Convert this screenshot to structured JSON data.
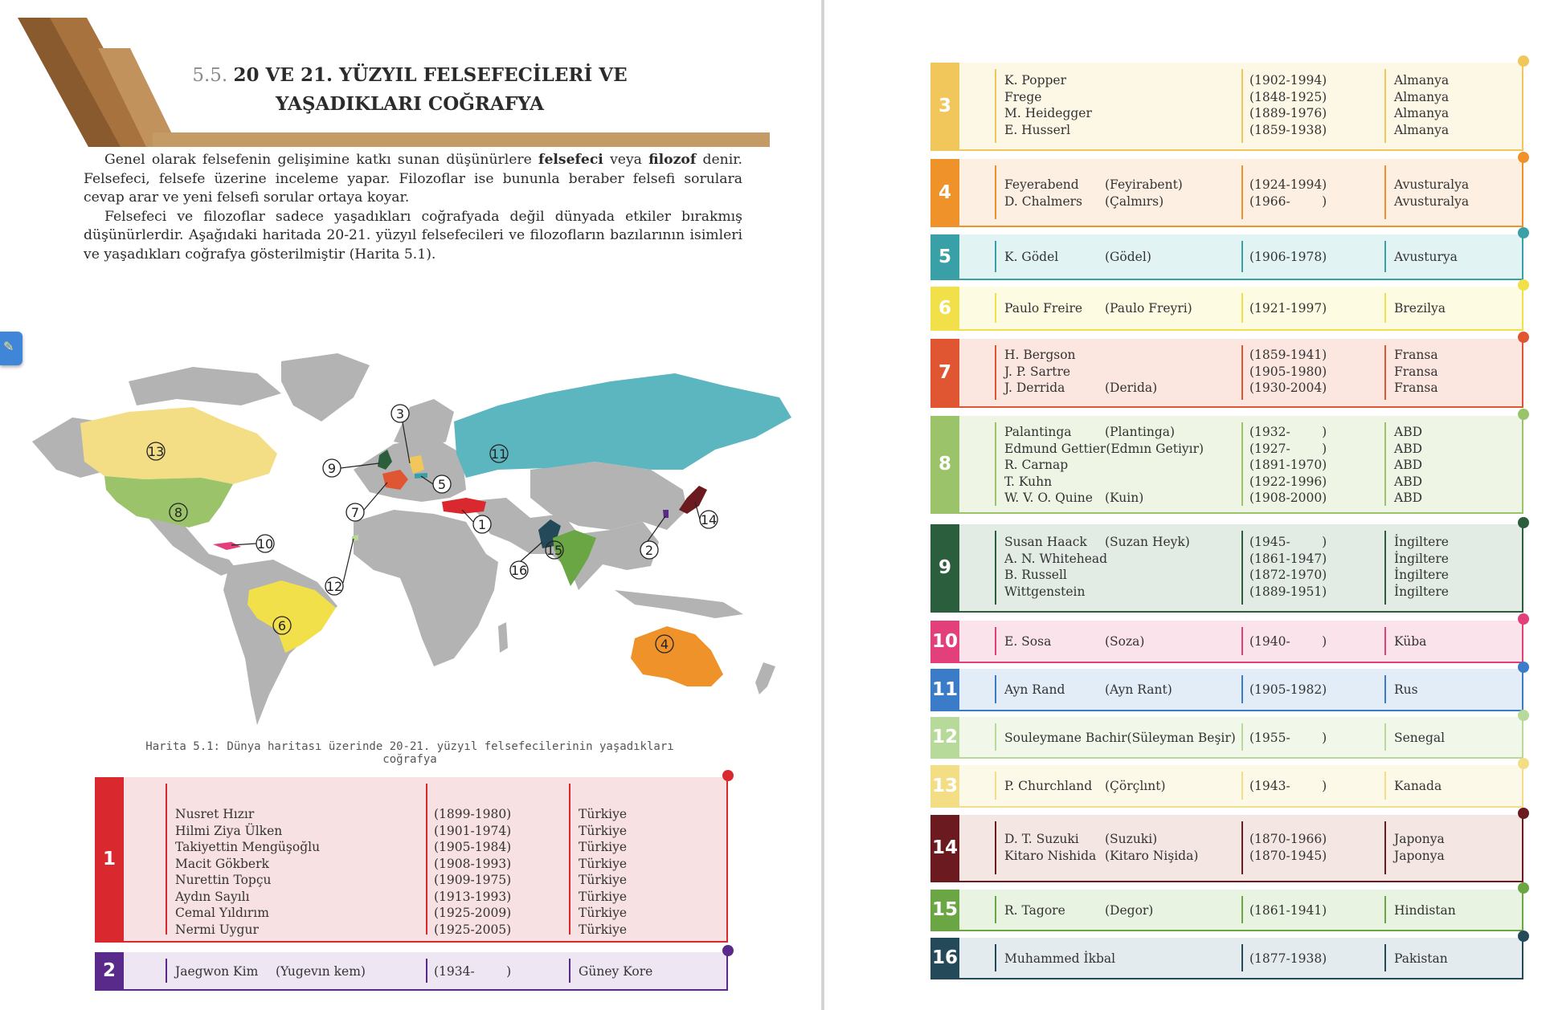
{
  "heading": {
    "number": "5.5.",
    "line1": "20 VE 21. YÜZYIL FELSEFECİLERİ VE",
    "line2": "YAŞADIKLARI COĞRAFYA"
  },
  "intro": {
    "p1_pre": "Genel olarak felsefenin gelişimine katkı sunan düşünürlere ",
    "p1_term1": "felsefeci",
    "p1_mid": " veya ",
    "p1_term2": "filozof",
    "p1_post": " denir. Felsefeci, felsefe üzerine inceleme yapar. Filozoflar ise bununla beraber felsefi sorulara cevap arar ve yeni felsefi sorular ortaya koyar.",
    "p2": "Felsefeci ve filozoflar sadece yaşadıkları coğrafyada değil dünyada etkiler bırakmış düşünürlerdir. Aşağıdaki haritada 20-21. yüzyıl felsefecileri ve filozofların bazılarının isimleri ve yaşadıkları coğrafya gösterilmiştir (Harita 5.1)."
  },
  "side_tab": {
    "icon": "bookmark-icon",
    "glyph": "✎"
  },
  "map": {
    "caption": "Harita 5.1: Dünya haritası üzerinde 20-21. yüzyıl felsefecilerinin yaşadıkları coğrafya",
    "markers": [
      "1",
      "2",
      "3",
      "4",
      "5",
      "6",
      "7",
      "8",
      "9",
      "10",
      "11",
      "12",
      "13",
      "14",
      "15",
      "16"
    ]
  },
  "cards": [
    {
      "n": "1",
      "color": "#d9282e",
      "bg": "#f8e1e3",
      "names": [
        [
          "Nusret Hızır",
          ""
        ],
        [
          "Hilmi Ziya Ülken",
          ""
        ],
        [
          "Takiyettin Mengüşoğlu",
          ""
        ],
        [
          "Macit Gökberk",
          ""
        ],
        [
          "Nurettin Topçu",
          ""
        ],
        [
          "Aydın Sayılı",
          ""
        ],
        [
          "Cemal Yıldırım",
          ""
        ],
        [
          "Nermi Uygur",
          ""
        ]
      ],
      "years": [
        "(1899-1980)",
        "(1901-1974)",
        "(1905-1984)",
        "(1908-1993)",
        "(1909-1975)",
        "(1913-1993)",
        "(1925-2009)",
        "(1925-2005)"
      ],
      "countries": [
        "Türkiye",
        "Türkiye",
        "Türkiye",
        "Türkiye",
        "Türkiye",
        "Türkiye",
        "Türkiye",
        "Türkiye"
      ]
    },
    {
      "n": "2",
      "color": "#5a2a8a",
      "bg": "#efe6f4",
      "names": [
        [
          "Jaegwon Kim",
          "(Yugevın kem)"
        ]
      ],
      "years": [
        "(1934-        )"
      ],
      "countries": [
        "Güney Kore"
      ]
    },
    {
      "n": "3",
      "color": "#f1c75b",
      "bg": "#fdf7e6",
      "names": [
        [
          "K. Popper",
          ""
        ],
        [
          "Frege",
          ""
        ],
        [
          "M. Heidegger",
          ""
        ],
        [
          "E. Husserl",
          ""
        ]
      ],
      "years": [
        "(1902-1994)",
        "(1848-1925)",
        "(1889-1976)",
        "(1859-1938)"
      ],
      "countries": [
        "Almanya",
        "Almanya",
        "Almanya",
        "Almanya"
      ]
    },
    {
      "n": "4",
      "color": "#f0922a",
      "bg": "#fdf0e2",
      "names": [
        [
          "Feyerabend",
          "(Feyirabent)"
        ],
        [
          "D. Chalmers",
          "(Çalmırs)"
        ]
      ],
      "years": [
        "(1924-1994)",
        "(1966-        )"
      ],
      "countries": [
        "Avusturalya",
        "Avusturalya"
      ]
    },
    {
      "n": "5",
      "color": "#3aa0a7",
      "bg": "#e2f3f4",
      "names": [
        [
          "K. Gödel",
          "(Gödel)"
        ]
      ],
      "years": [
        "(1906-1978)"
      ],
      "countries": [
        "Avusturya"
      ]
    },
    {
      "n": "6",
      "color": "#f2e04a",
      "bg": "#fdfbe2",
      "names": [
        [
          "Paulo Freire",
          "(Paulo Freyri)"
        ]
      ],
      "years": [
        "(1921-1997)"
      ],
      "countries": [
        "Brezilya"
      ]
    },
    {
      "n": "7",
      "color": "#e05532",
      "bg": "#fbe6e0",
      "names": [
        [
          "H. Bergson",
          ""
        ],
        [
          "J. P. Sartre",
          ""
        ],
        [
          "J. Derrida",
          "(Derida)"
        ]
      ],
      "years": [
        "(1859-1941)",
        "(1905-1980)",
        "(1930-2004)"
      ],
      "countries": [
        "Fransa",
        "Fransa",
        "Fransa"
      ]
    },
    {
      "n": "8",
      "color": "#9bc36a",
      "bg": "#eef5e4",
      "names": [
        [
          "Palantinga",
          "(Plantinga)"
        ],
        [
          "Edmund Gettier",
          "(Edmın Getiyır)"
        ],
        [
          "R. Carnap",
          ""
        ],
        [
          "T. Kuhn",
          ""
        ],
        [
          "W. V. O. Quine",
          "(Kuin)"
        ]
      ],
      "years": [
        "(1932-        )",
        "(1927-        )",
        "(1891-1970)",
        "(1922-1996)",
        "(1908-2000)"
      ],
      "countries": [
        "ABD",
        "ABD",
        "ABD",
        "ABD",
        "ABD"
      ]
    },
    {
      "n": "9",
      "color": "#2b5e3c",
      "bg": "#e2ece5",
      "names": [
        [
          "Susan Haack",
          "(Suzan Heyk)"
        ],
        [
          "A. N. Whitehead",
          ""
        ],
        [
          "B. Russell",
          ""
        ],
        [
          "Wittgenstein",
          ""
        ]
      ],
      "years": [
        "(1945-        )",
        "(1861-1947)",
        "(1872-1970)",
        "(1889-1951)"
      ],
      "countries": [
        "İngiltere",
        "İngiltere",
        "İngiltere",
        "İngiltere"
      ]
    },
    {
      "n": "10",
      "color": "#e33f7b",
      "bg": "#fbe3ec",
      "names": [
        [
          "E. Sosa",
          "(Soza)"
        ]
      ],
      "years": [
        "(1940-        )"
      ],
      "countries": [
        "Küba"
      ]
    },
    {
      "n": "11",
      "color": "#3a7cc8",
      "bg": "#e3edf8",
      "names": [
        [
          "Ayn Rand",
          "(Ayn Rant)"
        ]
      ],
      "years": [
        "(1905-1982)"
      ],
      "countries": [
        "Rus"
      ]
    },
    {
      "n": "12",
      "color": "#b7d99a",
      "bg": "#f1f8ea",
      "names": [
        [
          "Souleymane Bachir",
          "(Süleyman Beşir)"
        ]
      ],
      "years": [
        "(1955-        )"
      ],
      "countries": [
        "Senegal"
      ]
    },
    {
      "n": "13",
      "color": "#f3de86",
      "bg": "#fdf9e8",
      "names": [
        [
          "P. Churchland",
          "(Çörçlınt)"
        ]
      ],
      "years": [
        "(1943-        )"
      ],
      "countries": [
        "Kanada"
      ]
    },
    {
      "n": "14",
      "color": "#6b1a1f",
      "bg": "#f4e6e3",
      "names": [
        [
          "D. T. Suzuki",
          "(Suzuki)"
        ],
        [
          "Kitaro Nishida",
          "(Kitaro Nişida)"
        ]
      ],
      "years": [
        "(1870-1966)",
        "(1870-1945)"
      ],
      "countries": [
        "Japonya",
        "Japonya"
      ]
    },
    {
      "n": "15",
      "color": "#6aa644",
      "bg": "#e9f3e2",
      "names": [
        [
          "R. Tagore",
          "(Degor)"
        ]
      ],
      "years": [
        "(1861-1941)"
      ],
      "countries": [
        "Hindistan"
      ]
    },
    {
      "n": "16",
      "color": "#244a5a",
      "bg": "#e3ebee",
      "names": [
        [
          "Muhammed İkbal",
          ""
        ]
      ],
      "years": [
        "(1877-1938)"
      ],
      "countries": [
        "Pakistan"
      ]
    }
  ]
}
